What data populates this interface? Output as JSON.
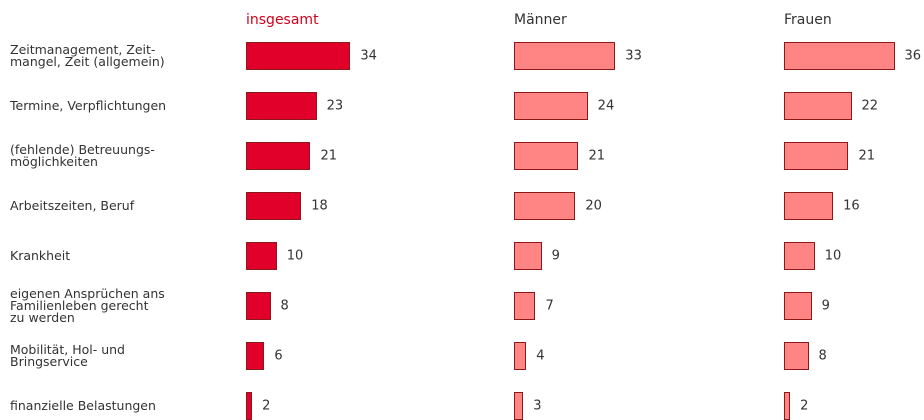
{
  "chart_data": {
    "type": "bar",
    "categories": [
      "Zeitmanagement, Zeit-\nmangel, Zeit (allgemein)",
      "Termine, Verpflichtungen",
      "(fehlende) Betreuungs-\nmöglichkeiten",
      "Arbeitszeiten, Beruf",
      "Krankheit",
      "eigenen Ansprüchen ans\nFamilienleben gerecht\nzu werden",
      "Mobilität, Hol- und\nBringservice",
      "finanzielle Belastungen"
    ],
    "series": [
      {
        "name": "insgesamt",
        "color": "#e0002a",
        "values": [
          34,
          23,
          21,
          18,
          10,
          8,
          6,
          2
        ]
      },
      {
        "name": "Männer",
        "color": "#ff8585",
        "values": [
          33,
          24,
          21,
          20,
          9,
          7,
          4,
          3
        ]
      },
      {
        "name": "Frauen",
        "color": "#ff8585",
        "values": [
          36,
          22,
          21,
          16,
          10,
          9,
          8,
          2
        ]
      }
    ]
  }
}
